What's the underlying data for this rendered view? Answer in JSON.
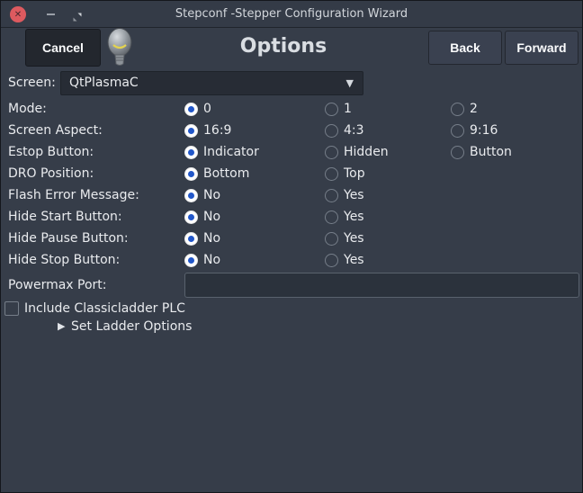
{
  "window": {
    "title": "Stepconf -Stepper Configuration Wizard"
  },
  "header": {
    "cancel_label": "Cancel",
    "title": "Options",
    "back_label": "Back",
    "forward_label": "Forward"
  },
  "form": {
    "screen": {
      "label": "Screen:",
      "value": "QtPlasmaC"
    },
    "radio_rows": [
      {
        "label": "Mode:",
        "options": [
          "0",
          "1",
          "2"
        ],
        "selected": 0
      },
      {
        "label": "Screen Aspect:",
        "options": [
          "16:9",
          "4:3",
          "9:16"
        ],
        "selected": 0
      },
      {
        "label": "Estop Button:",
        "options": [
          "Indicator",
          "Hidden",
          "Button"
        ],
        "selected": 0
      },
      {
        "label": "DRO Position:",
        "options": [
          "Bottom",
          "Top"
        ],
        "selected": 0
      },
      {
        "label": "Flash Error Message:",
        "options": [
          "No",
          "Yes"
        ],
        "selected": 0
      },
      {
        "label": "Hide Start Button:",
        "options": [
          "No",
          "Yes"
        ],
        "selected": 0
      },
      {
        "label": "Hide Pause Button:",
        "options": [
          "No",
          "Yes"
        ],
        "selected": 0
      },
      {
        "label": "Hide Stop Button:",
        "options": [
          "No",
          "Yes"
        ],
        "selected": 0
      }
    ],
    "powermax": {
      "label": "Powermax Port:",
      "value": ""
    },
    "classicladder": {
      "label": "Include Classicladder PLC",
      "checked": false
    },
    "ladder_expander": {
      "label": "Set Ladder Options",
      "expanded": false
    }
  },
  "icons": {
    "close_glyph": "✕",
    "combo_arrow_glyph": "▼",
    "expander_glyph": "▶"
  },
  "colors": {
    "accent_blue": "#2257c9",
    "close_red": "#dd5a5f",
    "titlebar_bg": "#343b47",
    "body_bg": "#363d49"
  }
}
